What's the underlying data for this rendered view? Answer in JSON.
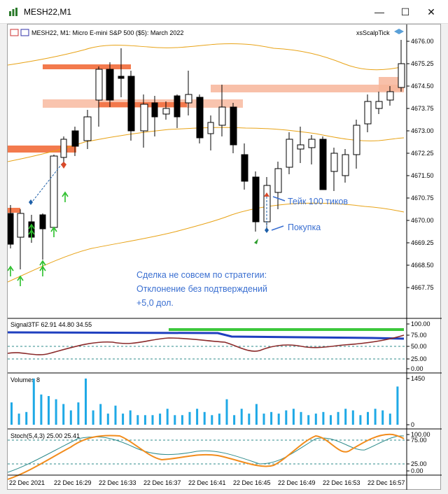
{
  "window": {
    "title": "MESH22,M1",
    "minimize_glyph": "—",
    "maximize_glyph": "☐",
    "close_glyph": "✕"
  },
  "chart": {
    "header": "MESH22, M1:  Micro E-mini S&P 500 ($5): March 2022",
    "indicator_name": "xsScalpTick",
    "price_labels": [
      "4676.00",
      "4675.25",
      "4674.50",
      "4673.75",
      "4673.00",
      "4672.25",
      "4671.50",
      "4670.75",
      "4670.00",
      "4669.25",
      "4668.50",
      "4667.75"
    ],
    "annotations": {
      "take_profit": "Тейк 100 тиков",
      "buy": "Покупка"
    },
    "note_lines": [
      "Сделка не совсем по стратегии:",
      "Отклонение без подтверждений",
      "+5,0 дол."
    ],
    "colors": {
      "bull_body": "#ffffff",
      "bear_body": "#000000",
      "band": "#e8a317",
      "zone_red": "#f26b3a",
      "zone_light": "#f7b59a",
      "signal_blue": "#1f3fbf",
      "signal_green": "#3cc83c",
      "signal_dark": "#8b2a2a",
      "volume": "#1fa9e6",
      "stoch_main": "#f28c1c",
      "stoch_signal": "#2e8b8b",
      "annotation": "#3a6fd1"
    }
  },
  "signal_panel": {
    "label": "Signal3TF 62.91 44.80 34.55",
    "levels": [
      "100.00",
      "75.00",
      "50.00",
      "25.00",
      "0.00"
    ]
  },
  "volume_panel": {
    "label": "Volumes 8",
    "levels": [
      "1450",
      "0"
    ],
    "values": [
      700,
      350,
      400,
      1500,
      950,
      900,
      800,
      650,
      450,
      700,
      1450,
      450,
      650,
      350,
      600,
      350,
      450,
      300,
      300,
      300,
      350,
      500,
      300,
      300,
      400,
      500,
      400,
      300,
      350,
      800,
      300,
      500,
      350,
      650,
      350,
      400,
      350,
      450,
      500,
      400,
      300,
      350,
      400,
      300,
      400,
      500,
      450,
      300,
      400,
      500,
      450,
      350,
      1200
    ]
  },
  "stoch_panel": {
    "label": "Stoch(5,4,3) 25.00 25.41",
    "levels": [
      "100.00",
      "75.00",
      "25.00",
      "0.00"
    ]
  },
  "time_labels": [
    "22 Dec 2021",
    "22 Dec 16:29",
    "22 Dec 16:33",
    "22 Dec 16:37",
    "22 Dec 16:41",
    "22 Dec 16:45",
    "22 Dec 16:49",
    "22 Dec 16:53",
    "22 Dec 16:57"
  ]
}
